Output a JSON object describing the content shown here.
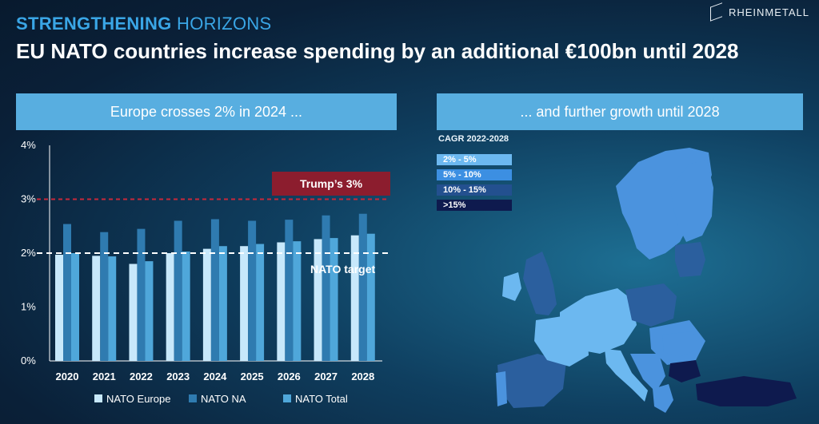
{
  "header": {
    "kicker_bold": "STRENGTHENING",
    "kicker_light": "HORIZONS",
    "headline": "EU NATO countries increase spending by an additional €100bn until 2028",
    "brand": "RHEINMETALL"
  },
  "left_panel": {
    "title": "Europe crosses 2% in 2024 ..."
  },
  "right_panel": {
    "title": "... and further growth until 2028"
  },
  "cagr_legend": {
    "title": "CAGR 2022-2028",
    "items": [
      {
        "label": "2% - 5%",
        "color": "#6cb8f0"
      },
      {
        "label": "5% - 10%",
        "color": "#3c8fe2"
      },
      {
        "label": "10% - 15%",
        "color": "#23508f"
      },
      {
        "label": ">15%",
        "color": "#0e1a4e"
      }
    ]
  },
  "colors": {
    "nato_europe": "#c7e8fb",
    "nato_na": "#2f7bb0",
    "nato_total": "#4fa7da",
    "nato_target_line": "#ffffff",
    "trump_line": "#c8283a",
    "trump_label_bg": "#8c1d2e"
  },
  "chart_data": {
    "type": "bar",
    "categories": [
      "2020",
      "2021",
      "2022",
      "2023",
      "2024",
      "2025",
      "2026",
      "2027",
      "2028"
    ],
    "series": [
      {
        "name": "NATO Europe",
        "values": [
          1.97,
          1.95,
          1.8,
          2.0,
          2.08,
          2.13,
          2.2,
          2.26,
          2.33
        ]
      },
      {
        "name": "NATO NA",
        "values": [
          2.54,
          2.39,
          2.45,
          2.6,
          2.63,
          2.6,
          2.62,
          2.7,
          2.73
        ]
      },
      {
        "name": "NATO Total",
        "values": [
          2.0,
          1.94,
          1.85,
          2.03,
          2.13,
          2.17,
          2.22,
          2.28,
          2.36
        ]
      }
    ],
    "yticks": [
      "0%",
      "1%",
      "2%",
      "3%",
      "4%"
    ],
    "ylim": [
      0,
      4
    ],
    "reference_lines": [
      {
        "label": "NATO target",
        "value": 2
      },
      {
        "label": "Trump’s 3%",
        "value": 3
      }
    ],
    "legend": [
      "NATO Europe",
      "NATO NA",
      "NATO Total"
    ]
  }
}
